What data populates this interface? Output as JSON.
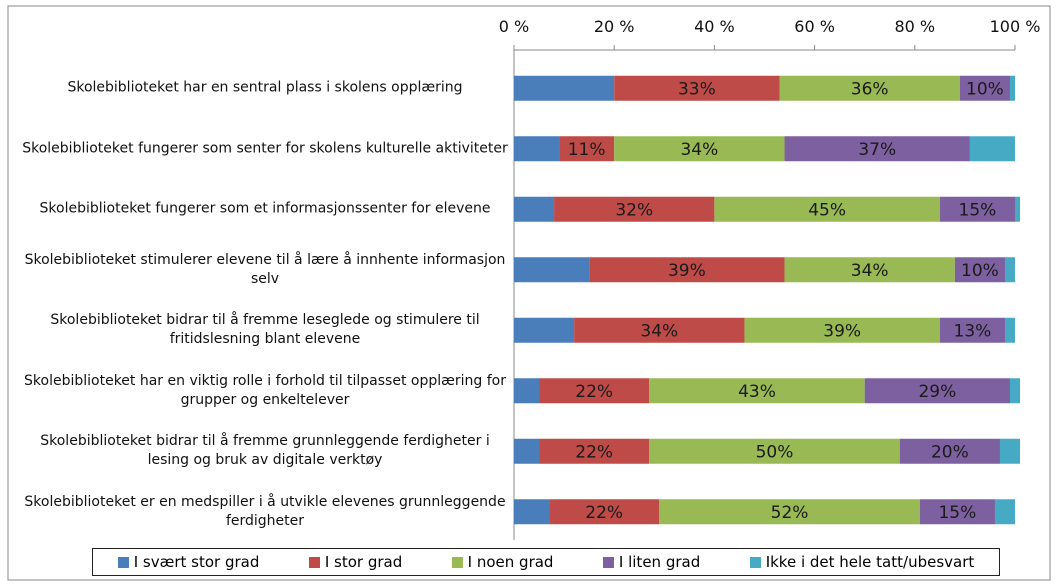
{
  "chart_data": {
    "type": "stacked_barh",
    "categories": [
      "Skolebiblioteket har en sentral plass i skolens opplæring",
      "Skolebiblioteket fungerer som senter for skolens kulturelle aktiviteter",
      "Skolebiblioteket fungerer som et informasjonssenter for elevene",
      "Skolebiblioteket stimulerer elevene til å lære å innhente informasjon selv",
      "Skolebiblioteket bidrar til å fremme leseglede og stimulere til fritidslesning blant elevene",
      "Skolebiblioteket har en viktig rolle i forhold til tilpasset opplæring for grupper og enkeltelever",
      "Skolebiblioteket bidrar til å fremme grunnleggende ferdigheter i lesing og bruk av digitale verktøy",
      "Skolebiblioteket er en medspiller i å utvikle elevenes grunnleggende ferdigheter"
    ],
    "series": [
      {
        "name": "I svært stor grad",
        "color": "#4a7ebb",
        "values": [
          20,
          9,
          8,
          15,
          12,
          5,
          5,
          7
        ]
      },
      {
        "name": "I stor grad",
        "color": "#be4b48",
        "values": [
          33,
          11,
          32,
          39,
          34,
          22,
          22,
          22
        ],
        "value_labels": [
          "33%",
          "11%",
          "32%",
          "39%",
          "34%",
          "22%",
          "22%",
          "22%"
        ]
      },
      {
        "name": "I noen grad",
        "color": "#98b954",
        "values": [
          36,
          34,
          45,
          34,
          39,
          43,
          50,
          52
        ],
        "value_labels": [
          "36%",
          "34%",
          "45%",
          "34%",
          "39%",
          "43%",
          "50%",
          "52%"
        ]
      },
      {
        "name": "I liten grad",
        "color": "#7d60a0",
        "values": [
          10,
          37,
          15,
          10,
          13,
          29,
          20,
          15
        ],
        "value_labels": [
          "10%",
          "37%",
          "15%",
          "10%",
          "13%",
          "29%",
          "20%",
          "15%"
        ]
      },
      {
        "name": "Ikke i det hele tatt/ubesvart",
        "color": "#46aac5",
        "values": [
          1,
          9,
          1,
          2,
          2,
          2,
          4,
          4
        ]
      }
    ],
    "xlim": [
      0,
      100
    ],
    "xticks": [
      {
        "value": 0,
        "label": "0 %"
      },
      {
        "value": 20,
        "label": "20 %"
      },
      {
        "value": 40,
        "label": "40 %"
      },
      {
        "value": 60,
        "label": "60 %"
      },
      {
        "value": 80,
        "label": "80 %"
      },
      {
        "value": 100,
        "label": "100 %"
      }
    ],
    "legend": "bottom"
  }
}
